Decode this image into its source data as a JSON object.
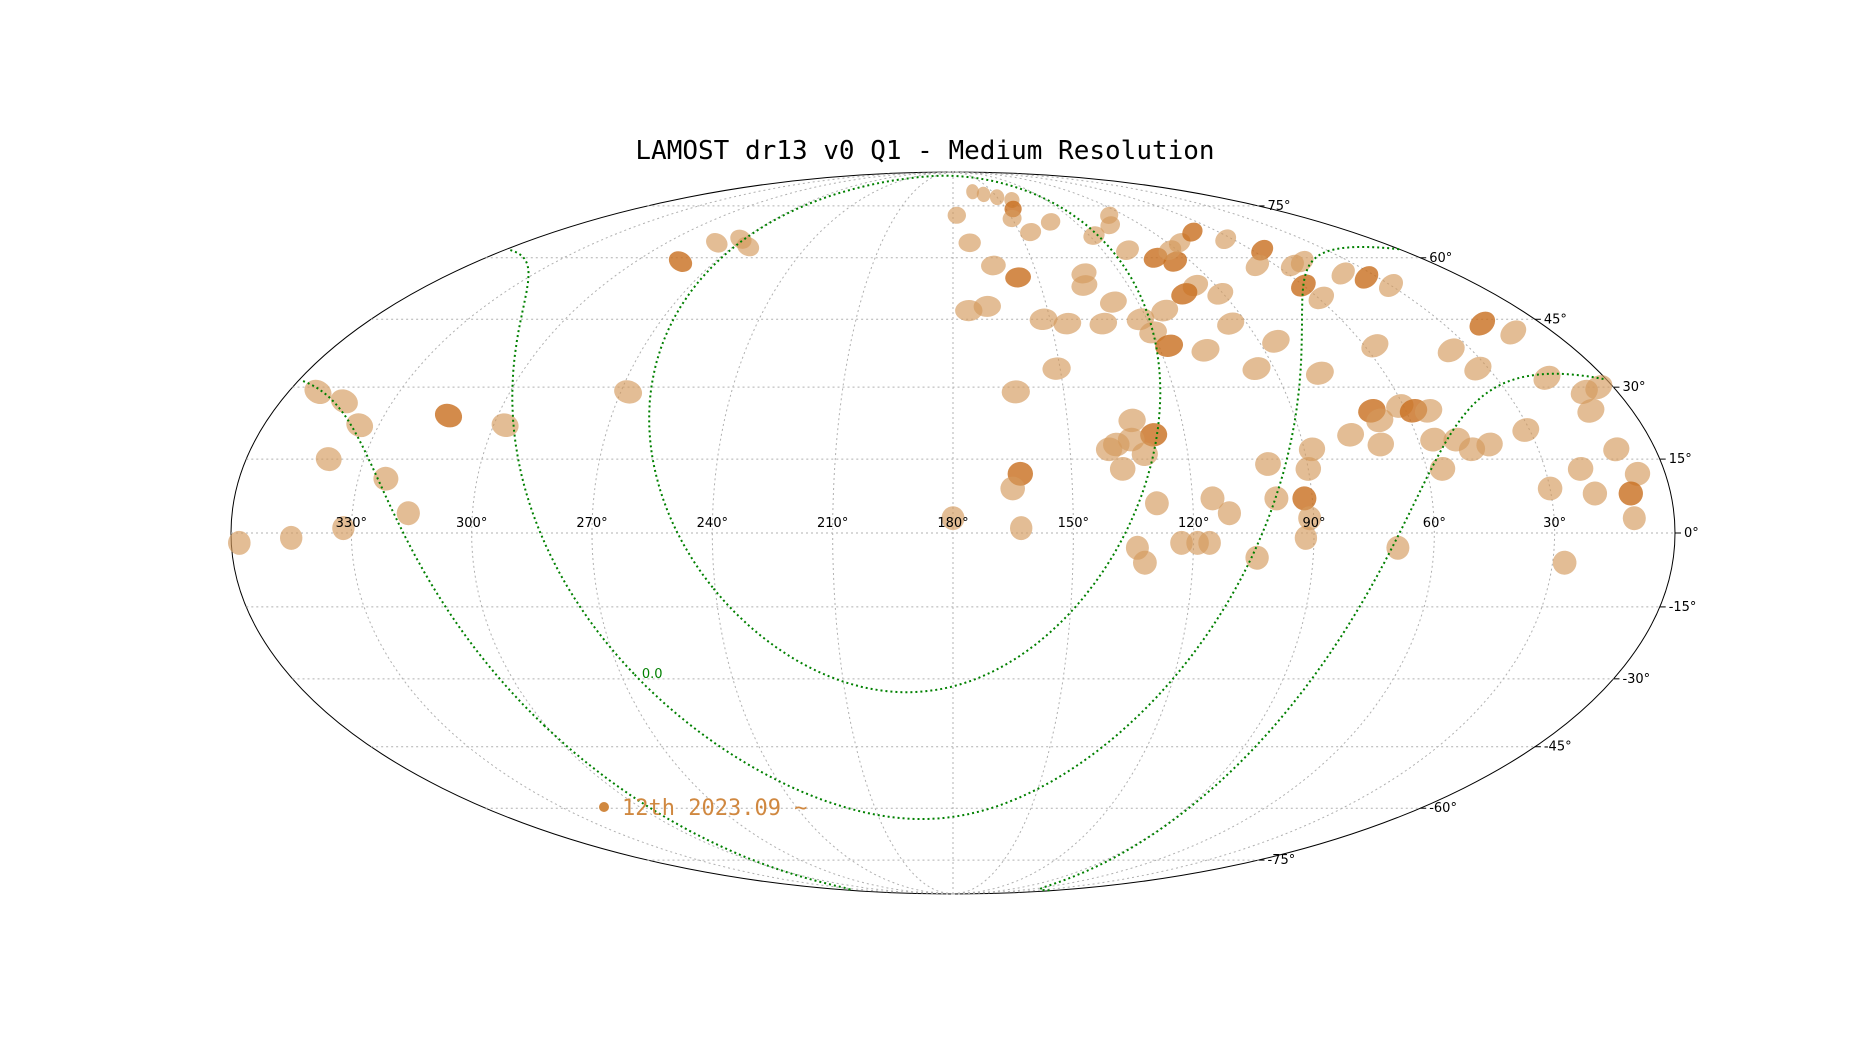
{
  "title": "LAMOST dr13 v0 Q1 - Medium Resolution",
  "projection": "mollweide",
  "colors": {
    "field_light": "#d49a5c",
    "field_dark": "#c86e1e",
    "galactic_line": "#008000",
    "grid": "#b0b0b0",
    "frame": "#000000"
  },
  "ra_ticks": [
    "330°",
    "300°",
    "270°",
    "240°",
    "210°",
    "180°",
    "150°",
    "120°",
    "90°",
    "60°",
    "30°"
  ],
  "dec_ticks": [
    {
      "label": "75°",
      "dec": 75
    },
    {
      "label": "60°",
      "dec": 60
    },
    {
      "label": "45°",
      "dec": 45
    },
    {
      "label": "30°",
      "dec": 30
    },
    {
      "label": "15°",
      "dec": 15
    },
    {
      "label": "0°",
      "dec": 0
    },
    {
      "label": "-15°",
      "dec": -15
    },
    {
      "label": "-30°",
      "dec": -30
    },
    {
      "label": "-45°",
      "dec": -45
    },
    {
      "label": "-60°",
      "dec": -60
    },
    {
      "label": "-75°",
      "dec": -75
    }
  ],
  "galactic_b_lines": [
    -30,
    0,
    30
  ],
  "galactic_line_label": "0.0",
  "legend": {
    "label": "12th 2023.09 ~",
    "icon": "filled-circle-marker"
  },
  "fields": [
    {
      "ra": 165,
      "dec": 80,
      "dark": false
    },
    {
      "ra": 158,
      "dec": 79,
      "dark": false
    },
    {
      "ra": 150,
      "dec": 78,
      "dark": false
    },
    {
      "ra": 142,
      "dec": 77,
      "dark": false
    },
    {
      "ra": 146,
      "dec": 74,
      "dark": true
    },
    {
      "ra": 150,
      "dec": 71,
      "dark": false
    },
    {
      "ra": 178,
      "dec": 72,
      "dark": false
    },
    {
      "ra": 173,
      "dec": 64,
      "dark": false
    },
    {
      "ra": 145,
      "dec": 67,
      "dark": false
    },
    {
      "ra": 132,
      "dec": 70,
      "dark": false
    },
    {
      "ra": 118,
      "dec": 66,
      "dark": false
    },
    {
      "ra": 105,
      "dec": 69,
      "dark": false
    },
    {
      "ra": 98,
      "dec": 72,
      "dark": false
    },
    {
      "ra": 110,
      "dec": 62,
      "dark": false
    },
    {
      "ra": 102,
      "dec": 60,
      "dark": true
    },
    {
      "ra": 96,
      "dec": 59,
      "dark": true
    },
    {
      "ra": 93,
      "dec": 62,
      "dark": false
    },
    {
      "ra": 85,
      "dec": 64,
      "dark": false
    },
    {
      "ra": 72,
      "dec": 67,
      "dark": true
    },
    {
      "ra": 63,
      "dec": 65,
      "dark": false
    },
    {
      "ra": 56,
      "dec": 62,
      "dark": true
    },
    {
      "ra": 54,
      "dec": 58,
      "dark": false
    },
    {
      "ra": 67,
      "dec": 58,
      "dark": false
    },
    {
      "ra": 48,
      "dec": 59,
      "dark": false
    },
    {
      "ra": 40,
      "dec": 56,
      "dark": false
    },
    {
      "ra": 34,
      "dec": 55,
      "dark": true
    },
    {
      "ra": 30,
      "dec": 53,
      "dark": false
    },
    {
      "ra": 18,
      "dec": 44,
      "dark": true
    },
    {
      "ra": 12,
      "dec": 42,
      "dark": false
    },
    {
      "ra": 60,
      "dec": 53,
      "dark": true
    },
    {
      "ra": 59,
      "dec": 50,
      "dark": false
    },
    {
      "ra": 97,
      "dec": 53,
      "dark": false
    },
    {
      "ra": 91,
      "dec": 51,
      "dark": false
    },
    {
      "ra": 103,
      "dec": 51,
      "dark": true
    },
    {
      "ra": 113,
      "dec": 47,
      "dark": false
    },
    {
      "ra": 128,
      "dec": 49,
      "dark": false
    },
    {
      "ra": 122,
      "dec": 45,
      "dark": false
    },
    {
      "ra": 135,
      "dec": 53,
      "dark": false
    },
    {
      "ra": 133,
      "dec": 56,
      "dark": false
    },
    {
      "ra": 165,
      "dec": 58,
      "dark": false
    },
    {
      "ra": 157,
      "dec": 55,
      "dark": true
    },
    {
      "ra": 120,
      "dec": 42,
      "dark": false
    },
    {
      "ra": 117,
      "dec": 39,
      "dark": true
    },
    {
      "ra": 107,
      "dec": 38,
      "dark": false
    },
    {
      "ra": 95,
      "dec": 44,
      "dark": false
    },
    {
      "ra": 85,
      "dec": 40,
      "dark": false
    },
    {
      "ra": 57,
      "dec": 39,
      "dark": false
    },
    {
      "ra": 36,
      "dec": 38,
      "dark": false
    },
    {
      "ra": 33,
      "dec": 34,
      "dark": false
    },
    {
      "ra": 175,
      "dec": 47,
      "dark": false
    },
    {
      "ra": 169,
      "dec": 48,
      "dark": false
    },
    {
      "ra": 152,
      "dec": 45,
      "dark": false
    },
    {
      "ra": 145,
      "dec": 44,
      "dark": false
    },
    {
      "ra": 134,
      "dec": 44,
      "dark": false
    },
    {
      "ra": 151,
      "dec": 34,
      "dark": false
    },
    {
      "ra": 95,
      "dec": 34,
      "dark": false
    },
    {
      "ra": 78,
      "dec": 33,
      "dark": false
    },
    {
      "ra": 16,
      "dec": 32,
      "dark": false
    },
    {
      "ra": 9,
      "dec": 29,
      "dark": false
    },
    {
      "ra": 4,
      "dec": 30,
      "dark": false
    },
    {
      "ra": 11,
      "dec": 25,
      "dark": false
    },
    {
      "ra": 163,
      "dec": 29,
      "dark": false
    },
    {
      "ra": 133,
      "dec": 23,
      "dark": false
    },
    {
      "ra": 128,
      "dec": 20,
      "dark": true
    },
    {
      "ra": 134,
      "dec": 19,
      "dark": false
    },
    {
      "ra": 138,
      "dec": 18,
      "dark": false
    },
    {
      "ra": 131,
      "dec": 16,
      "dark": false
    },
    {
      "ra": 140,
      "dec": 17,
      "dark": false
    },
    {
      "ra": 69,
      "dec": 25,
      "dark": true
    },
    {
      "ra": 68,
      "dec": 23,
      "dark": false
    },
    {
      "ra": 61,
      "dec": 26,
      "dark": false
    },
    {
      "ra": 58,
      "dec": 25,
      "dark": true
    },
    {
      "ra": 54,
      "dec": 25,
      "dark": false
    },
    {
      "ra": 56,
      "dec": 19,
      "dark": false
    },
    {
      "ra": 50,
      "dec": 19,
      "dark": false
    },
    {
      "ra": 47,
      "dec": 17,
      "dark": false
    },
    {
      "ra": 42,
      "dec": 18,
      "dark": false
    },
    {
      "ra": 77,
      "dec": 20,
      "dark": false
    },
    {
      "ra": 70,
      "dec": 18,
      "dark": false
    },
    {
      "ra": 88,
      "dec": 17,
      "dark": false
    },
    {
      "ra": 90,
      "dec": 13,
      "dark": false
    },
    {
      "ra": 100,
      "dec": 14,
      "dark": false
    },
    {
      "ra": 56,
      "dec": 13,
      "dark": false
    },
    {
      "ra": 31,
      "dec": 21,
      "dark": false
    },
    {
      "ra": 21,
      "dec": 13,
      "dark": false
    },
    {
      "ra": 10,
      "dec": 17,
      "dark": false
    },
    {
      "ra": 7,
      "dec": 12,
      "dark": false
    },
    {
      "ra": 30,
      "dec": 9,
      "dark": false
    },
    {
      "ra": 19,
      "dec": 8,
      "dark": false
    },
    {
      "ra": 10,
      "dec": 8,
      "dark": true
    },
    {
      "ra": 10,
      "dec": 3,
      "dark": false
    },
    {
      "ra": 137,
      "dec": 13,
      "dark": false
    },
    {
      "ra": 163,
      "dec": 12,
      "dark": true
    },
    {
      "ra": 165,
      "dec": 9,
      "dark": false
    },
    {
      "ra": 129,
      "dec": 6,
      "dark": false
    },
    {
      "ra": 180,
      "dec": 3,
      "dark": false
    },
    {
      "ra": 163,
      "dec": 1,
      "dark": false
    },
    {
      "ra": 115,
      "dec": 7,
      "dark": false
    },
    {
      "ra": 111,
      "dec": 4,
      "dark": false
    },
    {
      "ra": 99,
      "dec": 7,
      "dark": false
    },
    {
      "ra": 92,
      "dec": 7,
      "dark": true
    },
    {
      "ra": 91,
      "dec": 3,
      "dark": false
    },
    {
      "ra": 92,
      "dec": -1,
      "dark": false
    },
    {
      "ra": 116,
      "dec": -2,
      "dark": false
    },
    {
      "ra": 119,
      "dec": -2,
      "dark": false
    },
    {
      "ra": 123,
      "dec": -2,
      "dark": false
    },
    {
      "ra": 134,
      "dec": -3,
      "dark": false
    },
    {
      "ra": 132,
      "dec": -6,
      "dark": false
    },
    {
      "ra": 104,
      "dec": -5,
      "dark": false
    },
    {
      "ra": 69,
      "dec": -3,
      "dark": false
    },
    {
      "ra": 27,
      "dec": -6,
      "dark": false
    },
    {
      "ra": 268,
      "dec": 29,
      "dark": false
    },
    {
      "ra": 297,
      "dec": 22,
      "dark": false
    },
    {
      "ra": 313,
      "dec": 24,
      "dark": true
    },
    {
      "ra": 335,
      "dec": 22,
      "dark": false
    },
    {
      "ra": 339,
      "dec": 15,
      "dark": false
    },
    {
      "ra": 323,
      "dec": 11,
      "dark": false
    },
    {
      "ra": 316,
      "dec": 4,
      "dark": false
    },
    {
      "ra": 332,
      "dec": 1,
      "dark": false
    },
    {
      "ra": 345,
      "dec": -1,
      "dark": false
    },
    {
      "ra": 358,
      "dec": -2,
      "dark": false
    },
    {
      "ra": 343,
      "dec": 27,
      "dark": false
    },
    {
      "ra": 352,
      "dec": 29,
      "dark": false
    },
    {
      "ra": 283,
      "dec": 59,
      "dark": true
    },
    {
      "ra": 279,
      "dec": 64,
      "dark": false
    },
    {
      "ra": 271,
      "dec": 65,
      "dark": false
    },
    {
      "ra": 264,
      "dec": 63,
      "dark": false
    }
  ]
}
